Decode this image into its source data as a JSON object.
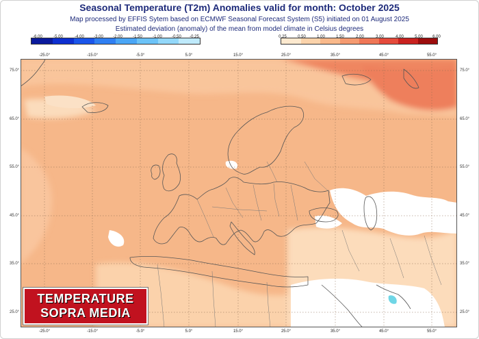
{
  "title": "Seasonal Temperature (T2m) Anomalies valid for month: October 2025",
  "subtitle_1": "Map processed by EFFIS Sytem based on ECMWF Seasonal Forecast System (S5) initiated on 01 August 2025",
  "subtitle_2": "Estimated deviation (anomaly) of the mean from model climate in Celsius degrees",
  "legend": {
    "negative_values": [
      "-6.00",
      "-5.00",
      "-4.00",
      "-3.00",
      "-2.00",
      "-1.50",
      "-1.00",
      "-0.50",
      "-0.25"
    ],
    "positive_values": [
      "0.25",
      "0.50",
      "1.00",
      "1.50",
      "2.00",
      "3.00",
      "4.00",
      "5.00",
      "6.00"
    ],
    "negative_colors": [
      "#0a1a9c",
      "#0d2fd0",
      "#1a55ea",
      "#2f7ff2",
      "#4aa6f6",
      "#6cc3f8",
      "#93d8fa",
      "#bfeafc"
    ],
    "positive_colors": [
      "#fde9cf",
      "#fbd3ab",
      "#f9b98b",
      "#f59a70",
      "#ef7656",
      "#e54a3b",
      "#c9211f",
      "#9c0d0d"
    ]
  },
  "longitude_labels": [
    "-25.0°",
    "-15.0°",
    "-5.0°",
    "5.0°",
    "15.0°",
    "25.0°",
    "35.0°",
    "45.0°",
    "55.0°"
  ],
  "latitude_labels": [
    "75.0°",
    "65.0°",
    "55.0°",
    "45.0°",
    "35.0°",
    "25.0°"
  ],
  "colors": {
    "title": "#1d2a7a",
    "base_anomaly": "#f6b789",
    "weak_anomaly": "#fbd7b1",
    "strong_anomaly": "#f2956f",
    "no_anomaly": "#ffffff",
    "logo": "#c1121f"
  },
  "logo": {
    "line1": "TEMPERATURE",
    "line2": "SOPRA MEDIA"
  }
}
